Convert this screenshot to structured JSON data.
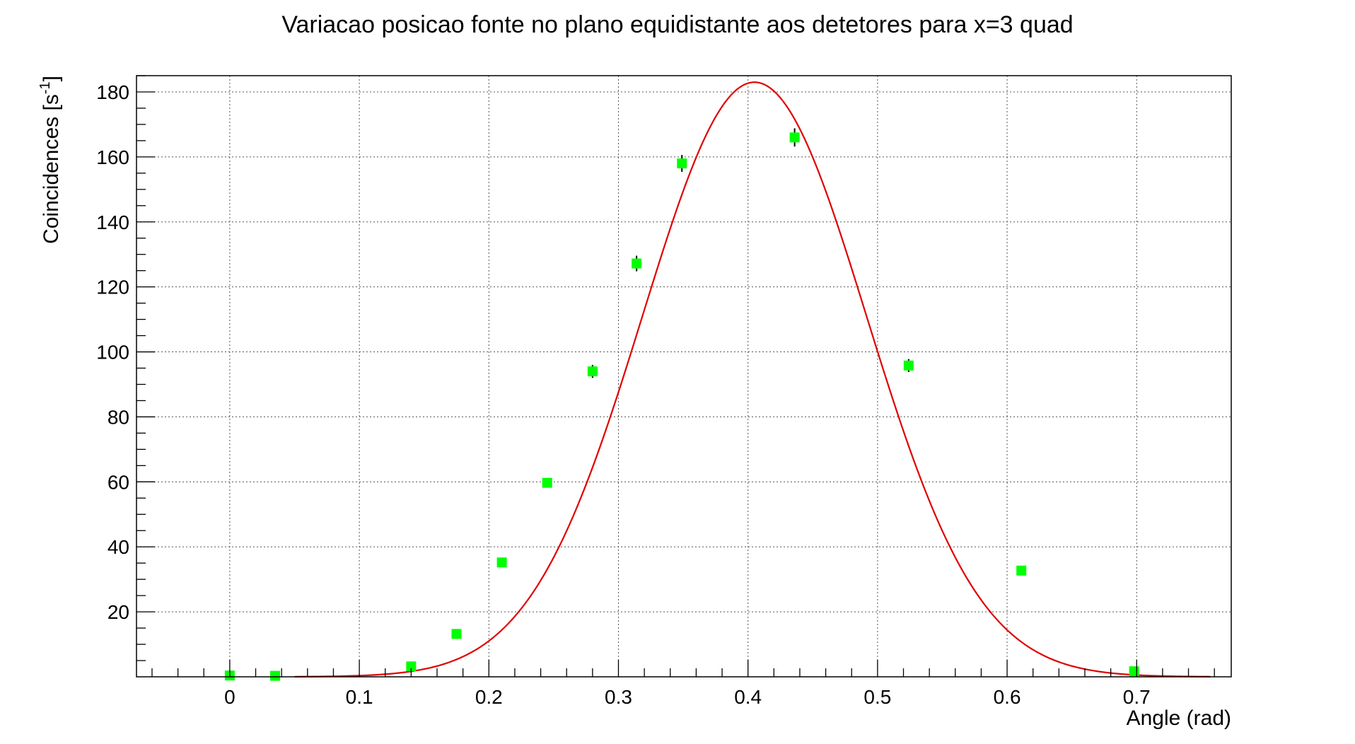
{
  "chart_data": {
    "type": "scatter",
    "title": "Variacao posicao fonte no plano equidistante aos detetores para x=3 quad",
    "xlabel": "Angle (rad)",
    "ylabel_main": "Coincidences [s",
    "ylabel_sup": "-1",
    "ylabel_end": "]",
    "xlim": [
      -0.072,
      0.773
    ],
    "ylim": [
      0,
      185
    ],
    "x_ticks": [
      0,
      0.1,
      0.2,
      0.3,
      0.4,
      0.5,
      0.6,
      0.7
    ],
    "x_tick_labels": [
      "0",
      "0.1",
      "0.2",
      "0.3",
      "0.4",
      "0.5",
      "0.6",
      "0.7"
    ],
    "y_ticks": [
      20,
      40,
      60,
      80,
      100,
      120,
      140,
      160,
      180
    ],
    "y_tick_labels": [
      "20",
      "40",
      "60",
      "80",
      "100",
      "120",
      "140",
      "160",
      "180"
    ],
    "grid": true,
    "series": [
      {
        "points": [
          {
            "x": 0.0,
            "y": 0.4,
            "err": 0.3
          },
          {
            "x": 0.035,
            "y": 0.3,
            "err": 0.3
          },
          {
            "x": 0.14,
            "y": 3.2,
            "err": 0.6
          },
          {
            "x": 0.175,
            "y": 13.2,
            "err": 1.0
          },
          {
            "x": 0.21,
            "y": 35.2,
            "err": 1.2
          },
          {
            "x": 0.245,
            "y": 59.7,
            "err": 1.4
          },
          {
            "x": 0.28,
            "y": 94.0,
            "err": 2.0
          },
          {
            "x": 0.314,
            "y": 127.2,
            "err": 2.4
          },
          {
            "x": 0.349,
            "y": 158.0,
            "err": 2.6
          },
          {
            "x": 0.436,
            "y": 166.0,
            "err": 2.8
          },
          {
            "x": 0.524,
            "y": 95.8,
            "err": 2.0
          },
          {
            "x": 0.611,
            "y": 32.7,
            "err": 1.2
          },
          {
            "x": 0.698,
            "y": 1.7,
            "err": 0.5
          }
        ]
      }
    ],
    "fit": {
      "type": "gaussian",
      "amplitude": 183,
      "mean": 0.405,
      "sigma": 0.0865,
      "x_range": [
        0.05,
        0.757
      ]
    },
    "colors": {
      "marker": "#00ff00",
      "fit": "#e00000",
      "error_bar": "#000000"
    }
  }
}
